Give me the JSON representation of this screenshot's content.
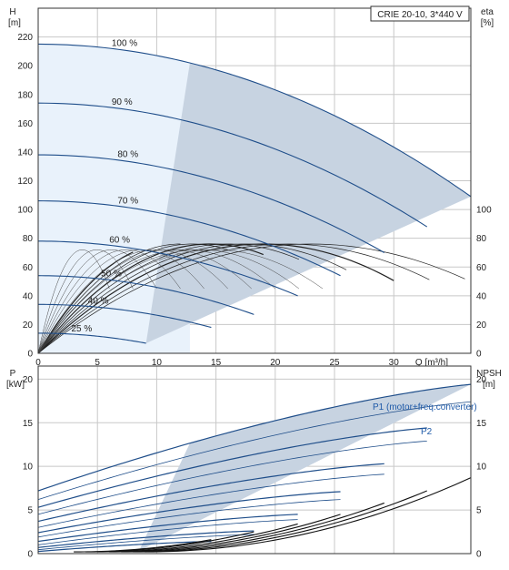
{
  "chart_data": [
    {
      "type": "line",
      "panel": "top",
      "title_box": "CRIE 20-10, 3*440 V",
      "left_axis": {
        "name": "H",
        "unit": "[m]",
        "ylim": [
          0,
          240
        ],
        "ticks": [
          0,
          20,
          40,
          60,
          80,
          100,
          120,
          140,
          160,
          180,
          200,
          220
        ]
      },
      "right_axis": {
        "name": "eta",
        "unit": "[%]",
        "ylim": [
          0,
          240
        ],
        "ticks": [
          0,
          20,
          40,
          60,
          80,
          100
        ]
      },
      "x_axis": {
        "name": "Q",
        "unit": "[m³/h]",
        "xlim": [
          0,
          36.5
        ],
        "ticks": [
          0,
          5,
          10,
          15,
          20,
          25,
          30
        ],
        "x_title": "Q [m³/h]"
      },
      "grid": true,
      "speed_curves": [
        {
          "label": "100 %",
          "h0": 215,
          "qmax": 36.5,
          "hend": 109
        },
        {
          "label": "90 %",
          "h0": 174,
          "qmax": 32.8,
          "hend": 88
        },
        {
          "label": "80 %",
          "h0": 138,
          "qmax": 29.2,
          "hend": 70
        },
        {
          "label": "70 %",
          "h0": 106,
          "qmax": 25.5,
          "hend": 54
        },
        {
          "label": "60 %",
          "h0": 78,
          "qmax": 21.9,
          "hend": 40
        },
        {
          "label": "50 %",
          "h0": 54,
          "qmax": 18.2,
          "hend": 27
        },
        {
          "label": "40 %",
          "h0": 34,
          "qmax": 14.6,
          "hend": 18
        },
        {
          "label": "25 %",
          "h0": 14,
          "qmax": 9.1,
          "hend": 7
        }
      ],
      "efficiency_curves": {
        "peak": 76,
        "best_q": [
          12,
          14.5,
          17,
          19.5,
          22,
          24.5,
          27
        ],
        "q_end": [
          8,
          12,
          16,
          19,
          22,
          26,
          30,
          33,
          36
        ]
      }
    },
    {
      "type": "line",
      "panel": "bottom",
      "left_axis": {
        "name": "P",
        "unit": "[kW]",
        "ylim": [
          0,
          21.5
        ],
        "ticks": [
          0,
          5,
          10,
          15,
          20
        ]
      },
      "right_axis": {
        "name": "NPSH",
        "unit": "[m]",
        "ylim": [
          0,
          21.5
        ],
        "ticks": [
          0,
          5,
          10,
          15,
          20
        ]
      },
      "x_axis": {
        "xlim": [
          0,
          36.5
        ],
        "ticks": [
          0,
          5,
          10,
          15,
          20,
          25,
          30
        ]
      },
      "grid": true,
      "series_labels": {
        "p1": "P1 (motor+freq.converter)",
        "p2": "P2"
      },
      "power_curves": [
        {
          "p0": 7.2,
          "qmax": 36.5,
          "pend": 19.4
        },
        {
          "p0": 6.2,
          "qmax": 36.5,
          "pend": 17.4
        },
        {
          "p0": 5.3,
          "qmax": 32.8,
          "pend": 14.4
        },
        {
          "p0": 4.5,
          "qmax": 32.8,
          "pend": 12.9
        },
        {
          "p0": 3.7,
          "qmax": 29.2,
          "pend": 10.3
        },
        {
          "p0": 3.0,
          "qmax": 29.2,
          "pend": 9.1
        },
        {
          "p0": 2.4,
          "qmax": 25.5,
          "pend": 7.1
        },
        {
          "p0": 1.9,
          "qmax": 25.5,
          "pend": 6.2
        },
        {
          "p0": 1.4,
          "qmax": 21.9,
          "pend": 4.5
        },
        {
          "p0": 1.0,
          "qmax": 21.9,
          "pend": 3.9
        },
        {
          "p0": 0.7,
          "qmax": 18.2,
          "pend": 2.6
        },
        {
          "p0": 0.45,
          "qmax": 18.2,
          "pend": 2.2
        },
        {
          "p0": 0.25,
          "qmax": 14.6,
          "pend": 1.4
        }
      ],
      "npsh_curves": [
        {
          "q0": 9,
          "qend": 36.5,
          "hend": 8.7
        },
        {
          "q0": 8,
          "qend": 32.8,
          "hend": 7.2
        },
        {
          "q0": 7,
          "qend": 29.2,
          "hend": 5.8
        },
        {
          "q0": 6,
          "qend": 25.5,
          "hend": 4.5
        },
        {
          "q0": 5,
          "qend": 21.9,
          "hend": 3.4
        },
        {
          "q0": 4,
          "qend": 18.2,
          "hend": 2.5
        },
        {
          "q0": 3,
          "qend": 14.6,
          "hend": 1.6
        }
      ]
    }
  ]
}
